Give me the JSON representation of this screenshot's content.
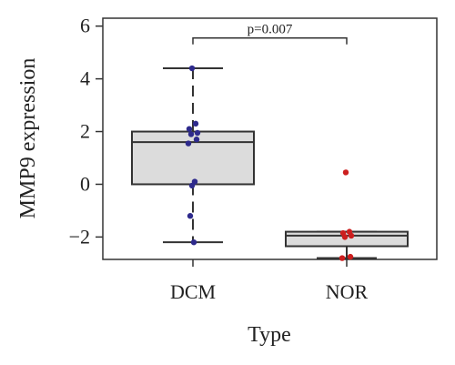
{
  "chart_data": {
    "type": "box",
    "title": "",
    "xlabel": "Type",
    "ylabel": "MMP9 expression",
    "ylim": [
      -2.85,
      6.3
    ],
    "yticks": [
      -2,
      0,
      2,
      4,
      6
    ],
    "categories": [
      "DCM",
      "NOR"
    ],
    "boxes": [
      {
        "name": "DCM",
        "whisker_low": -2.2,
        "q1": 0.0,
        "median": 1.6,
        "q3": 2.0,
        "whisker_high": 4.4,
        "points": [
          4.4,
          2.3,
          2.1,
          1.95,
          1.9,
          1.7,
          1.55,
          0.1,
          -0.05,
          -1.2,
          -2.2
        ],
        "point_color": "#2e2a8c"
      },
      {
        "name": "NOR",
        "whisker_low": -2.8,
        "q1": -2.35,
        "median": -1.95,
        "q3": -1.8,
        "whisker_high": -1.8,
        "points": [
          0.45,
          -1.8,
          -1.85,
          -1.95,
          -2.0,
          -2.75,
          -2.8
        ],
        "point_color": "#cc1f1f"
      }
    ],
    "annotation": {
      "text": "p=0.007",
      "from": "DCM",
      "to": "NOR",
      "y": 5.55
    },
    "box_fill": "#dcdcdc",
    "grid": false,
    "legend": "none"
  }
}
